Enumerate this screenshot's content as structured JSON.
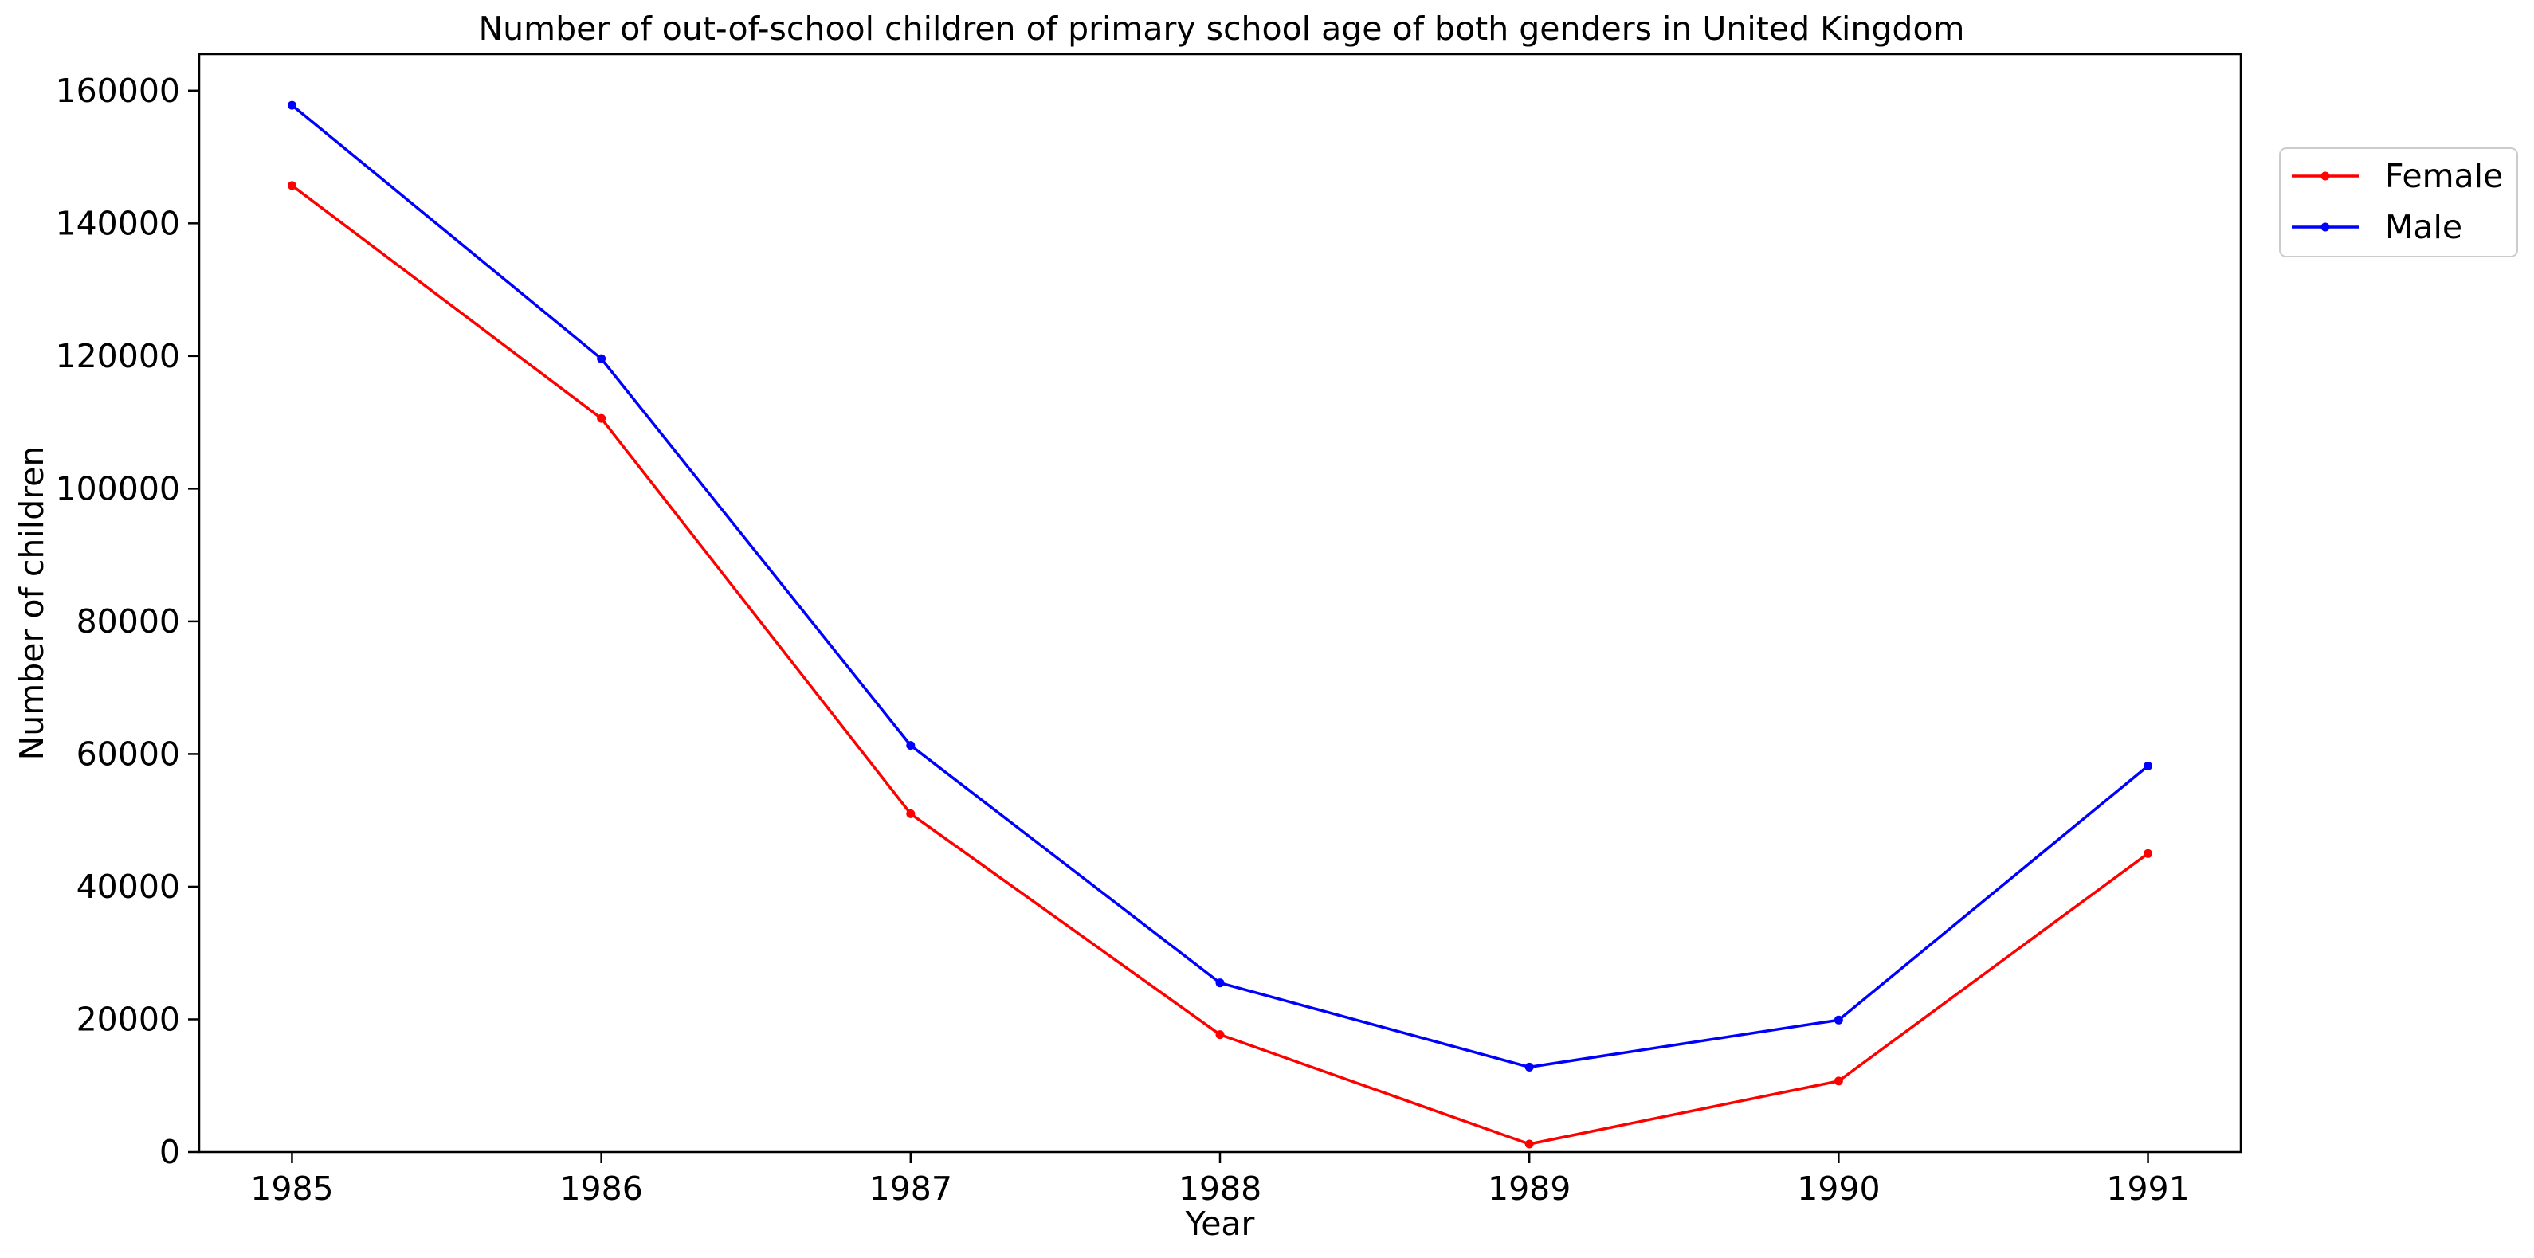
{
  "chart_data": {
    "type": "line",
    "title": "Number of out-of-school children of primary school age of both genders in United Kingdom",
    "xlabel": "Year",
    "ylabel": "Number of children",
    "x": [
      1985,
      1986,
      1987,
      1988,
      1989,
      1990,
      1991
    ],
    "x_ticks": [
      "1985",
      "1986",
      "1987",
      "1988",
      "1989",
      "1990",
      "1991"
    ],
    "xlim": [
      1984.7,
      1991.3
    ],
    "ylim": [
      0,
      165500
    ],
    "y_ticks": [
      0,
      20000,
      40000,
      60000,
      80000,
      100000,
      120000,
      140000,
      160000
    ],
    "y_tick_labels": [
      "0",
      "20000",
      "40000",
      "60000",
      "80000",
      "100000",
      "120000",
      "140000",
      "160000"
    ],
    "grid": false,
    "legend_position": "upper-right-outside",
    "series": [
      {
        "name": "Female",
        "color": "#ff0000",
        "values": [
          145700,
          110600,
          51000,
          17700,
          1200,
          10700,
          45000
        ]
      },
      {
        "name": "Male",
        "color": "#0000ff",
        "values": [
          157800,
          119600,
          61300,
          25500,
          12800,
          19900,
          58200
        ]
      }
    ]
  }
}
